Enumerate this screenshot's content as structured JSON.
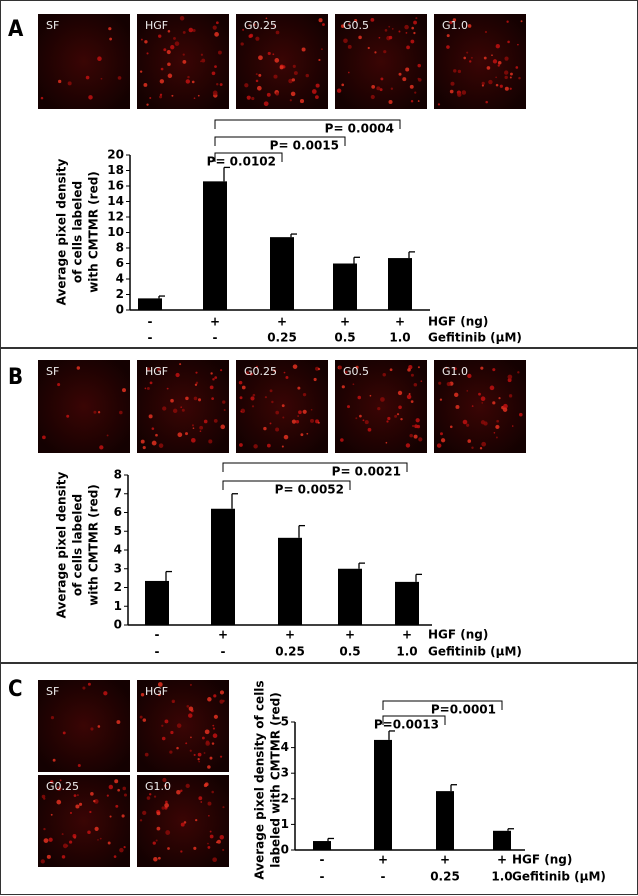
{
  "chart_data": [
    {
      "type": "bar",
      "panel_label": "A",
      "image_labels": [
        "SF",
        "HGF",
        "G0.25",
        "G0.5",
        "G1.0"
      ],
      "ylabel": [
        "Average pixel density",
        "of cells labeled",
        "with CMTMR (red)"
      ],
      "values": [
        1.5,
        16.6,
        9.4,
        6.0,
        6.7
      ],
      "errors": [
        0.3,
        1.8,
        0.4,
        0.8,
        0.8
      ],
      "color": "#000000",
      "ylim": [
        0,
        20
      ],
      "yticks": [
        0,
        2,
        4,
        6,
        8,
        10,
        12,
        14,
        16,
        18,
        20
      ],
      "category_rows": [
        {
          "name": "HGF (ng)",
          "labels": [
            "-",
            "+",
            "+",
            "+",
            "+"
          ]
        },
        {
          "name": "Gefitinib (μM)",
          "labels": [
            "-",
            "-",
            "0.25",
            "0.5",
            "1.0"
          ]
        }
      ],
      "annotations": [
        "P= 0.0004",
        "P= 0.0015",
        "P= 0.0102"
      ]
    },
    {
      "type": "bar",
      "panel_label": "B",
      "image_labels": [
        "SF",
        "HGF",
        "G0.25",
        "G0.5",
        "G1.0"
      ],
      "ylabel": [
        "Average pixel density",
        "of cells labeled",
        "with CMTMR (red)"
      ],
      "values": [
        2.35,
        6.2,
        4.65,
        3.0,
        2.3
      ],
      "errors": [
        0.5,
        0.8,
        0.65,
        0.3,
        0.4
      ],
      "color": "#000000",
      "ylim": [
        0,
        8
      ],
      "yticks": [
        0,
        1,
        2,
        3,
        4,
        5,
        6,
        7,
        8
      ],
      "category_rows": [
        {
          "name": "HGF (ng)",
          "labels": [
            "-",
            "+",
            "+",
            "+",
            "+"
          ]
        },
        {
          "name": "Gefitinib (μM)",
          "labels": [
            "-",
            "-",
            "0.25",
            "0.5",
            "1.0"
          ]
        }
      ],
      "annotations": [
        "P= 0.0021",
        "P= 0.0052"
      ]
    },
    {
      "type": "bar",
      "panel_label": "C",
      "image_labels": [
        "SF",
        "HGF",
        "G0.25",
        "G1.0"
      ],
      "ylabel": [
        "Average pixel density of cells",
        "labeled with CMTMR (red)"
      ],
      "values": [
        0.35,
        4.3,
        2.3,
        0.75
      ],
      "errors": [
        0.1,
        0.35,
        0.25,
        0.08
      ],
      "color": "#000000",
      "ylim": [
        0,
        5
      ],
      "yticks": [
        0,
        1,
        2,
        3,
        4,
        5
      ],
      "category_rows": [
        {
          "name": "HGF (ng)",
          "labels": [
            "-",
            "+",
            "+",
            "+"
          ]
        },
        {
          "name": "Gefitinib (μM)",
          "labels": [
            "-",
            "-",
            "0.25",
            "1.0"
          ]
        }
      ],
      "annotations": [
        "P=0.0001",
        "P=0.0013"
      ]
    }
  ]
}
